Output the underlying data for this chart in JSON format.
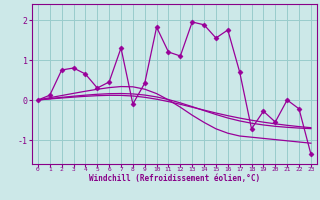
{
  "xlabel": "Windchill (Refroidissement éolien,°C)",
  "bg_color": "#cce8e8",
  "line_color": "#990099",
  "grid_color": "#99cccc",
  "x_data": [
    0,
    1,
    2,
    3,
    4,
    5,
    6,
    7,
    8,
    9,
    10,
    11,
    12,
    13,
    14,
    15,
    16,
    17,
    18,
    19,
    20,
    21,
    22,
    23
  ],
  "y_main": [
    0.0,
    0.12,
    0.75,
    0.8,
    0.65,
    0.3,
    0.45,
    1.3,
    -0.1,
    0.42,
    1.82,
    1.2,
    1.1,
    1.95,
    1.88,
    1.55,
    1.75,
    0.7,
    -0.72,
    -0.28,
    -0.55,
    0.0,
    -0.22,
    -1.35
  ],
  "y_line1": [
    0.0,
    0.057,
    0.112,
    0.166,
    0.219,
    0.268,
    0.31,
    0.336,
    0.33,
    0.27,
    0.16,
    0.002,
    -0.18,
    -0.38,
    -0.56,
    -0.72,
    -0.83,
    -0.9,
    -0.93,
    -0.96,
    -0.99,
    -1.02,
    -1.05,
    -1.08
  ],
  "y_line2": [
    0.0,
    0.026,
    0.05,
    0.072,
    0.092,
    0.108,
    0.117,
    0.115,
    0.1,
    0.068,
    0.02,
    -0.04,
    -0.108,
    -0.18,
    -0.253,
    -0.325,
    -0.392,
    -0.452,
    -0.506,
    -0.554,
    -0.596,
    -0.633,
    -0.665,
    -0.692
  ],
  "y_line3": [
    0.0,
    0.034,
    0.066,
    0.095,
    0.121,
    0.143,
    0.158,
    0.162,
    0.152,
    0.124,
    0.077,
    0.011,
    -0.072,
    -0.166,
    -0.265,
    -0.362,
    -0.45,
    -0.523,
    -0.58,
    -0.624,
    -0.658,
    -0.683,
    -0.702,
    -0.716
  ],
  "ylim": [
    -1.6,
    2.4
  ],
  "xlim": [
    -0.5,
    23.5
  ],
  "yticks": [
    -1,
    0,
    1,
    2
  ],
  "xticks": [
    0,
    1,
    2,
    3,
    4,
    5,
    6,
    7,
    8,
    9,
    10,
    11,
    12,
    13,
    14,
    15,
    16,
    17,
    18,
    19,
    20,
    21,
    22,
    23
  ],
  "label_color": "#880088",
  "tick_color": "#880088",
  "spine_color": "#880088"
}
